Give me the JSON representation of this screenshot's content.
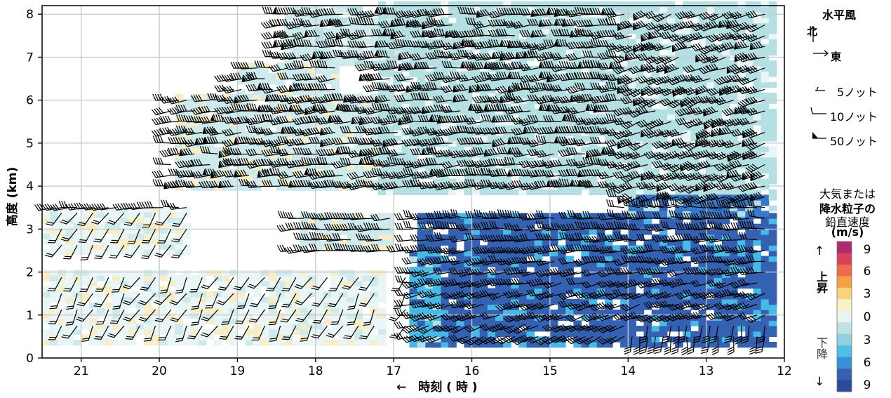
{
  "chart_data": {
    "type": "heatmap",
    "xlabel": "←　時刻 ( 時 )",
    "ylabel": "高度 (km)",
    "x_ticks": [
      21,
      20,
      19,
      18,
      17,
      16,
      15,
      14,
      13,
      12
    ],
    "x_range": [
      21.5,
      12
    ],
    "y_ticks": [
      0,
      1,
      2,
      3,
      4,
      5,
      6,
      7,
      8
    ],
    "y_range": [
      0,
      8.2
    ],
    "grid": true,
    "colorbar": {
      "label_lines": [
        "大気または",
        "降水粒子の",
        "鉛直速度",
        "(m/s)"
      ],
      "ticks": [
        "9",
        "6",
        "3",
        "0",
        "3",
        "6",
        "9"
      ],
      "up_label": "上昇",
      "down_label": "下降",
      "up_arrow": "↑",
      "down_arrow": "↓",
      "colors": [
        "#b02a6e",
        "#d9405c",
        "#ee6a4a",
        "#f4a043",
        "#f8d27c",
        "#fbf1c6",
        "#e9f5f3",
        "#bfe3e5",
        "#8fd2de",
        "#4ec0e6",
        "#3b8fd6",
        "#3561b0",
        "#2c4a9a"
      ]
    },
    "barb_legend": {
      "title": "水平風",
      "north": "北",
      "east": "東",
      "items": [
        "5ノット",
        "10ノット",
        "50ノット"
      ]
    },
    "regions": [
      {
        "t0": 21.5,
        "t1": 17.1,
        "h0": 0.3,
        "h1": 2.0,
        "w": 0.05
      },
      {
        "t0": 21.5,
        "t1": 19.6,
        "h0": 2.4,
        "h1": 3.5,
        "w": 0.2
      },
      {
        "t0": 18.2,
        "t1": 17.0,
        "h0": 2.5,
        "h1": 3.3,
        "w": 0.5
      },
      {
        "t0": 19.8,
        "t1": 17.2,
        "h0": 3.9,
        "h1": 6.1,
        "w": 0.6
      },
      {
        "t0": 19.0,
        "t1": 17.7,
        "h0": 6.0,
        "h1": 6.8,
        "w": 0.8
      },
      {
        "t0": 18.4,
        "t1": 16.6,
        "h0": 6.8,
        "h1": 8.1,
        "w": 1.0
      },
      {
        "t0": 17.2,
        "t1": 12.1,
        "h0": 3.8,
        "h1": 8.2,
        "w": 1.6
      },
      {
        "t0": 16.7,
        "t1": 12.1,
        "h0": 0.25,
        "h1": 3.3,
        "w": 6.8
      },
      {
        "t0": 16.8,
        "t1": 16.4,
        "h0": 0.25,
        "h1": 2.5,
        "w": 4.0
      },
      {
        "t0": 14.0,
        "t1": 12.1,
        "h0": 3.3,
        "h1": 3.8,
        "w": 4.5
      }
    ]
  }
}
